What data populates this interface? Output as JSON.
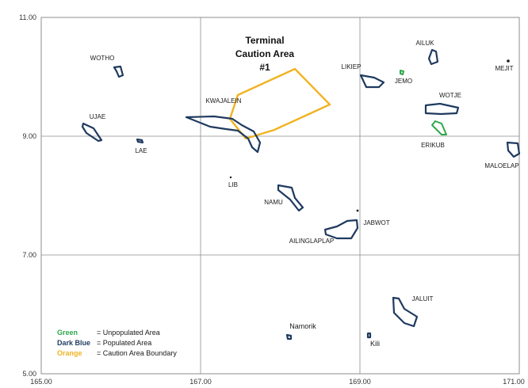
{
  "map": {
    "x_ticks": [
      "165.00",
      "167.00",
      "169.00",
      "171.00"
    ],
    "y_ticks": [
      "11.00",
      "9.00",
      "7.00",
      "5.00"
    ],
    "caution_title": [
      "Terminal",
      "Caution Area",
      "#1"
    ],
    "atolls": {
      "wotho": "WOTHO",
      "ujae": "UJAE",
      "lae": "LAE",
      "kwajalein": "KWAJALEIN",
      "lib": "LIB",
      "namu": "NAMU",
      "ailinglaplap": "AILINGLAPLAP",
      "jabwot": "JABWOT",
      "likiep": "LIKIEP",
      "jemo": "JEMO",
      "ailuk": "AILUK",
      "mejit": "MEJIT",
      "wotje": "WOTJE",
      "erikub": "ERIKUB",
      "maloelap": "MALOELAP",
      "jaluit": "JALUIT",
      "namorik": "Namorik",
      "kili": "Kili"
    },
    "legend": {
      "green_key": "Green",
      "green_val": "= Unpopulated Area",
      "blue_key": "Dark Blue",
      "blue_val": "= Populated Area",
      "orange_key": "Orange",
      "orange_val": "= Caution Area Boundary"
    },
    "colors": {
      "populated": "#1f3a5f",
      "unpopulated": "#2ea84a",
      "caution": "#f0b323",
      "grid": "#8c8c8c"
    }
  }
}
